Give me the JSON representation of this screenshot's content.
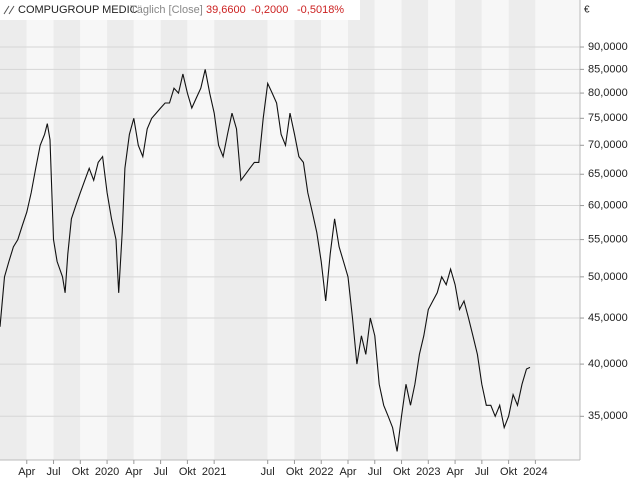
{
  "chart_data": {
    "type": "line",
    "title": "COMPUGROUP MEDIC",
    "subtitle": "Täglich [Close]",
    "last_price": "39,6600",
    "change": "-0,2000",
    "change_pct": "-0,5018%",
    "currency": "€",
    "log_scale": true,
    "grid": true,
    "xlim": [
      0,
      65
    ],
    "ylim": [
      31.3,
      101.5
    ],
    "xticks": [
      {
        "value": 3,
        "label": "Apr"
      },
      {
        "value": 6,
        "label": "Jul"
      },
      {
        "value": 9,
        "label": "Okt"
      },
      {
        "value": 12,
        "label": "2020"
      },
      {
        "value": 15,
        "label": "Apr"
      },
      {
        "value": 18,
        "label": "Jul"
      },
      {
        "value": 21,
        "label": "Okt"
      },
      {
        "value": 24,
        "label": "2021"
      },
      {
        "value": 30,
        "label": "Jul"
      },
      {
        "value": 33,
        "label": "Okt"
      },
      {
        "value": 36,
        "label": "2022"
      },
      {
        "value": 39,
        "label": "Apr"
      },
      {
        "value": 42,
        "label": "Jul"
      },
      {
        "value": 45,
        "label": "Okt"
      },
      {
        "value": 48,
        "label": "2023"
      },
      {
        "value": 51,
        "label": "Apr"
      },
      {
        "value": 54,
        "label": "Jul"
      },
      {
        "value": 57,
        "label": "Okt"
      },
      {
        "value": 60,
        "label": "2024"
      }
    ],
    "yticks": [
      {
        "value": 35,
        "label": "35,0000"
      },
      {
        "value": 40,
        "label": "40,0000"
      },
      {
        "value": 45,
        "label": "45,0000"
      },
      {
        "value": 50,
        "label": "50,0000"
      },
      {
        "value": 55,
        "label": "55,0000"
      },
      {
        "value": 60,
        "label": "60,0000"
      },
      {
        "value": 65,
        "label": "65,0000"
      },
      {
        "value": 70,
        "label": "70,0000"
      },
      {
        "value": 75,
        "label": "75,0000"
      },
      {
        "value": 80,
        "label": "80,0000"
      },
      {
        "value": 85,
        "label": "85,0000"
      },
      {
        "value": 90,
        "label": "90,0000"
      }
    ],
    "series": [
      {
        "color": "#111111",
        "x": [
          0,
          0.5,
          1,
          1.5,
          2,
          2.5,
          3,
          3.5,
          4,
          4.5,
          5,
          5.3,
          5.6,
          6,
          6.4,
          7,
          7.3,
          7.6,
          8,
          8.5,
          9,
          9.5,
          10,
          10.5,
          11,
          11.5,
          12,
          12.5,
          13,
          13.3,
          13.7,
          14,
          14.5,
          15,
          15.5,
          16,
          16.5,
          17,
          17.5,
          18,
          18.5,
          19,
          19.5,
          20,
          20.5,
          21,
          21.5,
          22,
          22.5,
          23,
          23.5,
          24,
          24.5,
          25,
          25.5,
          26,
          26.5,
          27,
          27.5,
          28,
          28.5,
          29,
          29.5,
          30,
          30.5,
          31,
          31.5,
          32,
          32.5,
          33,
          33.5,
          34,
          34.5,
          35,
          35.5,
          36,
          36.5,
          37,
          37.5,
          38,
          38.5,
          39,
          39.5,
          40,
          40.5,
          41,
          41.5,
          42,
          42.5,
          43,
          43.5,
          44,
          44.5,
          45,
          45.5,
          46,
          46.5,
          47,
          47.5,
          48,
          48.5,
          49,
          49.5,
          50,
          50.5,
          51,
          51.5,
          52,
          52.5,
          53,
          53.5,
          54,
          54.5,
          55,
          55.5,
          56,
          56.5,
          57,
          57.5,
          58,
          58.5,
          59,
          59.4
        ],
        "values": [
          44,
          50,
          52,
          54,
          55,
          57,
          59,
          62,
          66,
          70,
          72,
          74,
          71,
          55,
          52,
          50,
          48,
          53,
          58,
          60,
          62,
          64,
          66,
          64,
          67,
          68,
          62,
          58,
          55,
          48,
          56,
          66,
          72,
          75,
          70,
          68,
          73,
          75,
          76,
          77,
          78,
          78,
          81,
          80,
          84,
          80,
          77,
          79,
          81,
          85,
          80,
          76,
          70,
          68,
          72,
          76,
          73,
          64,
          65,
          66,
          67,
          67,
          75,
          82,
          80,
          78,
          72,
          70,
          76,
          72,
          68,
          67,
          62,
          59,
          56,
          52,
          47,
          53,
          58,
          54,
          52,
          50,
          45,
          40,
          43,
          41,
          45,
          43,
          38,
          36,
          35,
          34,
          32,
          35,
          38,
          36,
          38,
          41,
          43,
          46,
          47,
          48,
          50,
          49,
          51,
          49,
          46,
          47,
          45,
          43,
          41,
          38,
          36,
          36,
          35,
          36,
          34,
          35,
          37,
          36,
          38,
          39.5,
          39.66
        ]
      }
    ]
  }
}
